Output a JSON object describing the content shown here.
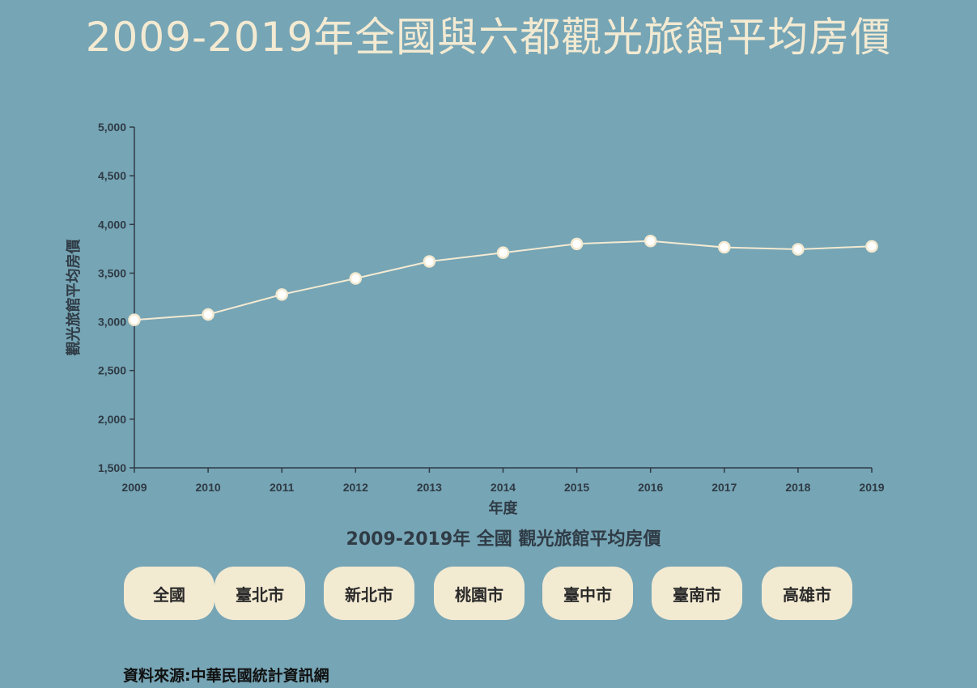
{
  "page": {
    "title": "2009-2019年全國與六都觀光旅館平均房價",
    "subtitle": "2009-2019年 全國 觀光旅館平均房價",
    "source": "資料來源:中華民國統計資訊網"
  },
  "buttons": [
    {
      "label": "全國"
    },
    {
      "label": "臺北市"
    },
    {
      "label": "新北市"
    },
    {
      "label": "桃園市"
    },
    {
      "label": "臺中市"
    },
    {
      "label": "臺南市"
    },
    {
      "label": "高雄市"
    }
  ],
  "colors": {
    "background": "#76a5b5",
    "accent": "#f3ead2",
    "axis": "#2f3b45"
  },
  "chart_data": {
    "type": "line",
    "xlabel": "年度",
    "ylabel": "觀光旅館平均房價",
    "x": [
      "2009",
      "2010",
      "2011",
      "2012",
      "2013",
      "2014",
      "2015",
      "2016",
      "2017",
      "2018",
      "2019"
    ],
    "values": [
      3020,
      3075,
      3280,
      3445,
      3620,
      3710,
      3800,
      3830,
      3765,
      3745,
      3775
    ],
    "ylim": [
      1500,
      5000
    ],
    "yticks": [
      1500,
      2000,
      2500,
      3000,
      3500,
      4000,
      4500,
      5000
    ],
    "ytick_labels": [
      "1,500",
      "2,000",
      "2,500",
      "3,000",
      "3,500",
      "4,000",
      "4,500",
      "5,000"
    ],
    "grid": false,
    "legend": "none"
  }
}
